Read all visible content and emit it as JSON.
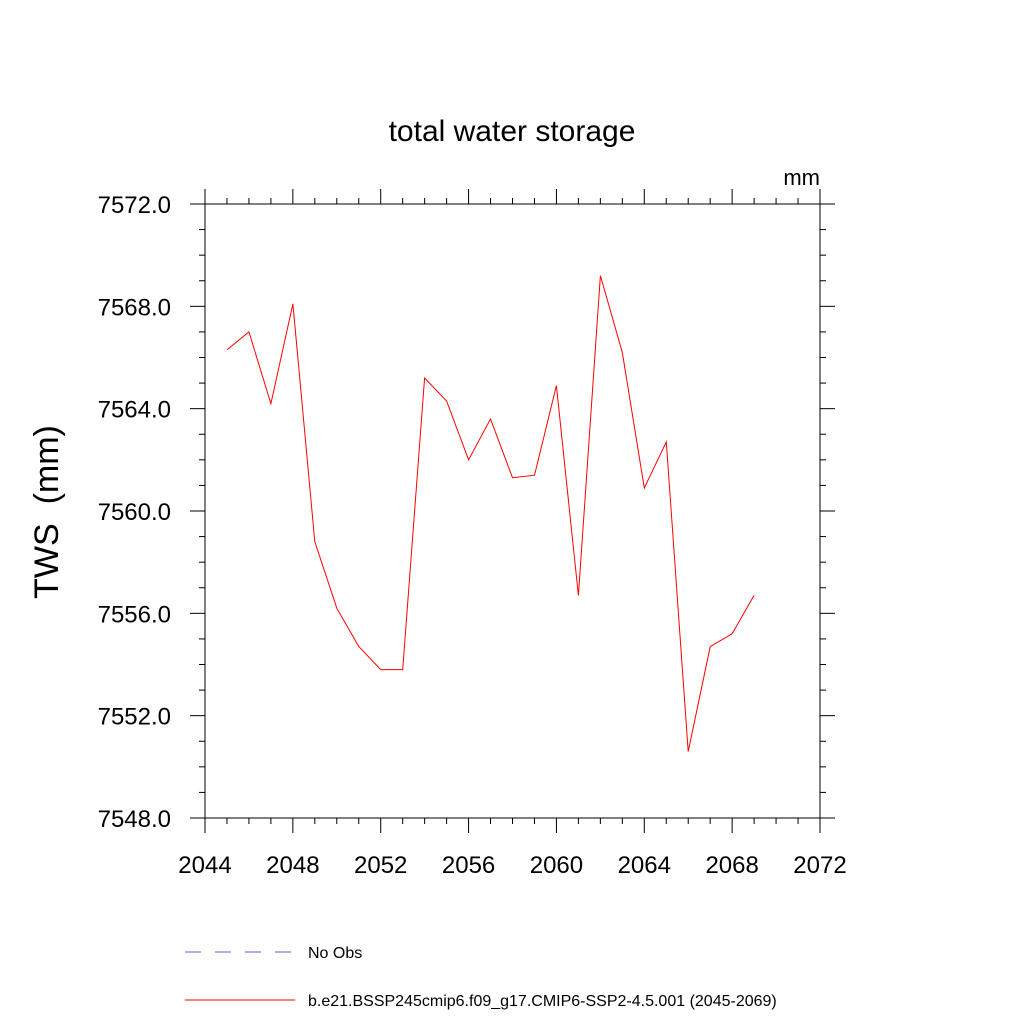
{
  "chart_data": {
    "type": "line",
    "title": "total water storage",
    "units_label": "mm",
    "ylabel": "TWS  (mm)",
    "xlabel": "",
    "xlim": [
      2044,
      2072
    ],
    "ylim": [
      7548.0,
      7572.0
    ],
    "x_ticks": [
      2044,
      2048,
      2052,
      2056,
      2060,
      2064,
      2068,
      2072
    ],
    "y_ticks": [
      "7548.0",
      "7552.0",
      "7556.0",
      "7560.0",
      "7564.0",
      "7568.0",
      "7572.0"
    ],
    "series": [
      {
        "name": "b.e21.BSSP245cmip6.f09_g17.CMIP6-SSP2-4.5.001 (2045-2069)",
        "color": "#ff0000",
        "x": [
          2045,
          2046,
          2047,
          2048,
          2049,
          2050,
          2051,
          2052,
          2053,
          2054,
          2055,
          2056,
          2057,
          2058,
          2059,
          2060,
          2061,
          2062,
          2063,
          2064,
          2065,
          2066,
          2067,
          2068,
          2069
        ],
        "values": [
          7566.3,
          7567.0,
          7564.2,
          7568.1,
          7558.8,
          7556.2,
          7554.7,
          7553.8,
          7553.8,
          7565.2,
          7564.3,
          7562.0,
          7563.6,
          7561.3,
          7561.4,
          7564.9,
          7556.7,
          7569.2,
          7566.2,
          7560.9,
          7562.7,
          7550.6,
          7554.7,
          7555.2,
          7556.7
        ]
      }
    ],
    "legend": [
      {
        "label": "No Obs",
        "color": "#6a5acd",
        "style": "dashed"
      },
      {
        "label": "b.e21.BSSP245cmip6.f09_g17.CMIP6-SSP2-4.5.001 (2045-2069)",
        "color": "#ff0000",
        "style": "solid"
      }
    ]
  }
}
